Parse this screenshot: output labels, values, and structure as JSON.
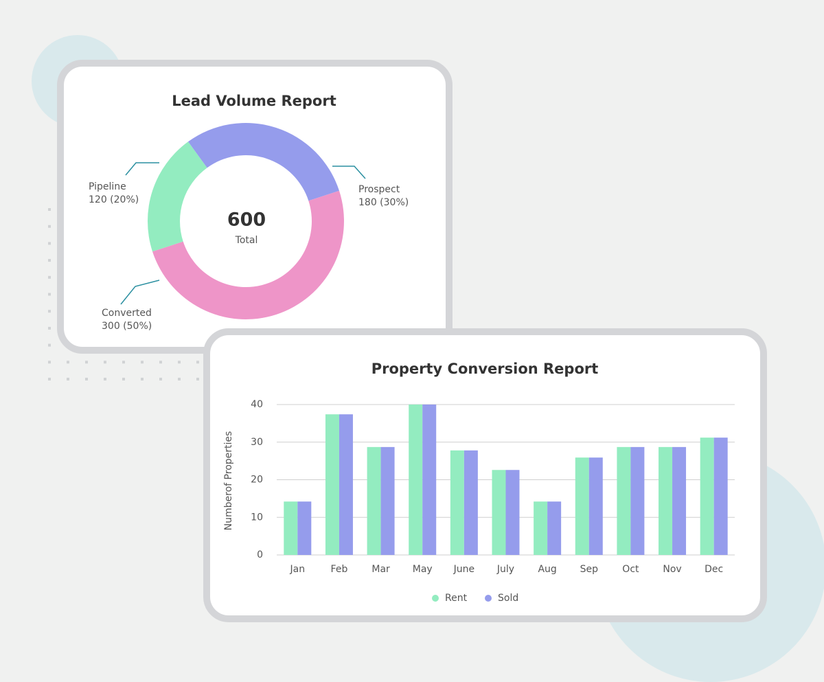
{
  "chart_data": [
    {
      "type": "donut",
      "title": "Lead Volume Report",
      "categories": [
        "Prospect",
        "Converted",
        "Pipeline"
      ],
      "values": [
        180,
        300,
        120
      ],
      "value_labels": [
        "180 (30%)",
        "300 (50%)",
        "120 (20%)"
      ],
      "colors": [
        "#959cec",
        "#ee95c8",
        "#93ecc0"
      ],
      "center_value": 600,
      "center_label": "Total"
    },
    {
      "type": "bar",
      "title": "Property Conversion Report",
      "y_label": "Numberof Properties",
      "categories": [
        "Jan",
        "Feb",
        "Mar",
        "May",
        "June",
        "July",
        "Aug",
        "Sep",
        "Oct",
        "Nov",
        "Dec"
      ],
      "series": [
        {
          "name": "Rent",
          "color": "#93ecc0",
          "values": [
            14.2,
            37.4,
            28.7,
            40,
            27.8,
            22.6,
            14.2,
            25.9,
            28.7,
            28.7,
            31.2
          ]
        },
        {
          "name": "Sold",
          "color": "#959cec",
          "values": [
            14.2,
            37.4,
            28.7,
            40,
            27.8,
            22.6,
            14.2,
            25.9,
            28.7,
            28.7,
            31.2
          ]
        }
      ],
      "ylim": [
        0,
        40
      ],
      "yticks": [
        0,
        10,
        20,
        30,
        40
      ],
      "grid": true,
      "legend": "bottom"
    }
  ]
}
